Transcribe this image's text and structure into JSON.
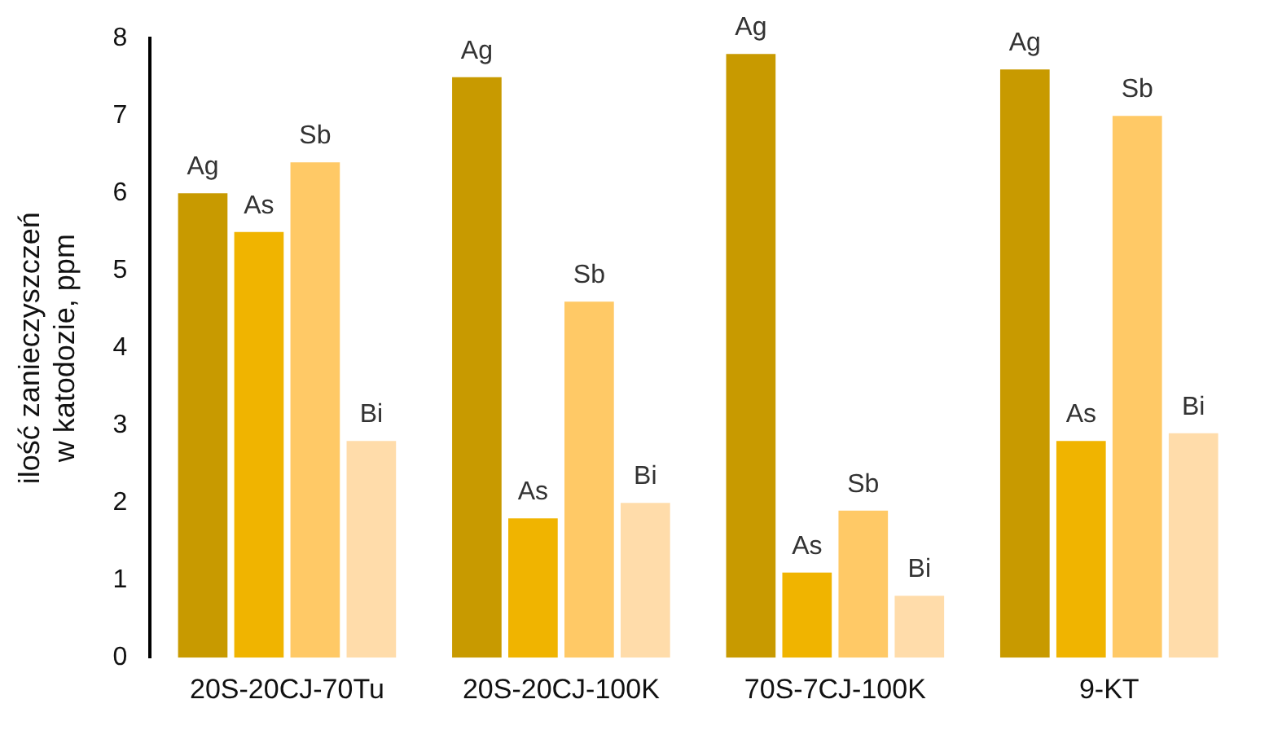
{
  "chart_data": {
    "type": "bar",
    "ylabel": "ilość zanieczyszczeń w katodozie, ppm",
    "categories": [
      "20S-20CJ-70Tu",
      "20S-20CJ-100K",
      "70S-7CJ-100K",
      "9-KT"
    ],
    "series": [
      {
        "name": "Ag",
        "color": "#c89a00",
        "values": [
          6.0,
          7.5,
          7.8,
          7.6
        ]
      },
      {
        "name": "As",
        "color": "#f0b400",
        "values": [
          5.5,
          1.8,
          1.1,
          2.8
        ]
      },
      {
        "name": "Sb",
        "color": "#ffc966",
        "values": [
          6.4,
          4.6,
          1.9,
          7.0
        ]
      },
      {
        "name": "Bi",
        "color": "#ffdcaa",
        "values": [
          2.8,
          2.0,
          0.8,
          2.9
        ]
      }
    ],
    "ylim": [
      0,
      8
    ],
    "yticks": [
      0,
      1,
      2,
      3,
      4,
      5,
      6,
      7,
      8
    ],
    "grid": false,
    "legend": false
  }
}
